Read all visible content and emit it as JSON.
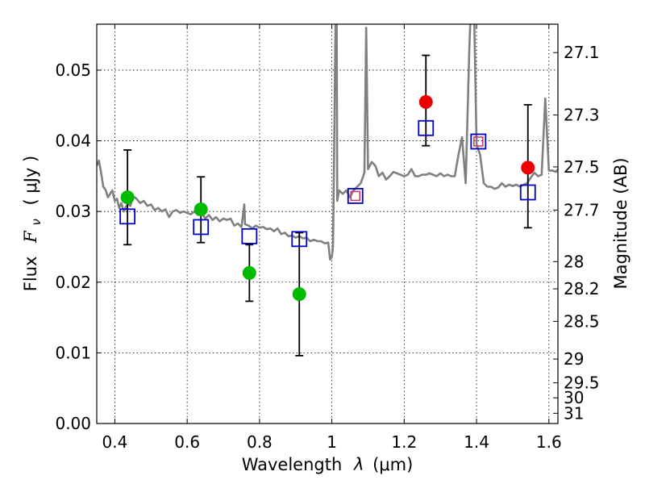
{
  "chart_data": {
    "type": "scatter",
    "xlabel_text": "Wavelength",
    "xlabel_symbol": "λ",
    "xlabel_unit": "(μm)",
    "ylabel_text": "Flux",
    "ylabel_symbol": "F",
    "ylabel_subscript": "ν",
    "ylabel_unit": "( μJy )",
    "y2label": "Magnitude (AB)",
    "xlim": [
      0.35,
      1.625
    ],
    "ylim": [
      0.0,
      0.0565
    ],
    "grid": true,
    "x_ticks": [
      0.4,
      0.6,
      0.8,
      1.0,
      1.2,
      1.4,
      1.6
    ],
    "x_tick_labels": [
      "0.4",
      "0.6",
      "0.8",
      "1",
      "1.2",
      "1.4",
      "1.6"
    ],
    "y_ticks": [
      0.0,
      0.01,
      0.02,
      0.03,
      0.04,
      0.05
    ],
    "y_tick_labels": [
      "0.00",
      "0.01",
      "0.02",
      "0.03",
      "0.04",
      "0.05"
    ],
    "y2_ticks": [
      {
        "label": "27.1",
        "mag": 27.1
      },
      {
        "label": "27.3",
        "mag": 27.3
      },
      {
        "label": "27.5",
        "mag": 27.5
      },
      {
        "label": "27.7",
        "mag": 27.7
      },
      {
        "label": "28",
        "mag": 28.0
      },
      {
        "label": "28.2",
        "mag": 28.2
      },
      {
        "label": "28.5",
        "mag": 28.5
      },
      {
        "label": "29",
        "mag": 29.0
      },
      {
        "label": "29.5",
        "mag": 29.5
      },
      {
        "label": "30",
        "mag": 30.0
      },
      {
        "label": "31",
        "mag": 31.0
      }
    ],
    "colors": {
      "model": "#808080",
      "green": "#00bb00",
      "red": "#ee0000",
      "blue": "#0000cc",
      "pink": "#cc3366",
      "errorbar": "#000000"
    },
    "series": [
      {
        "kind": "model_spectrum",
        "x": [
          0.35,
          0.356,
          0.362,
          0.368,
          0.375,
          0.381,
          0.387,
          0.393,
          0.4,
          0.406,
          0.412,
          0.418,
          0.425,
          0.431,
          0.437,
          0.443,
          0.45,
          0.46,
          0.47,
          0.48,
          0.49,
          0.5,
          0.51,
          0.52,
          0.53,
          0.54,
          0.55,
          0.56,
          0.57,
          0.58,
          0.59,
          0.6,
          0.61,
          0.62,
          0.63,
          0.64,
          0.65,
          0.66,
          0.67,
          0.68,
          0.69,
          0.7,
          0.71,
          0.72,
          0.73,
          0.74,
          0.75,
          0.758,
          0.76,
          0.77,
          0.78,
          0.79,
          0.8,
          0.81,
          0.82,
          0.83,
          0.84,
          0.85,
          0.86,
          0.87,
          0.88,
          0.89,
          0.9,
          0.91,
          0.92,
          0.93,
          0.94,
          0.95,
          0.96,
          0.97,
          0.98,
          0.99,
          0.995,
          1.0,
          1.003,
          1.005,
          1.01,
          1.012,
          1.015,
          1.02,
          1.03,
          1.04,
          1.05,
          1.06,
          1.07,
          1.08,
          1.09,
          1.095,
          1.1,
          1.11,
          1.12,
          1.13,
          1.14,
          1.15,
          1.16,
          1.17,
          1.18,
          1.19,
          1.2,
          1.21,
          1.22,
          1.23,
          1.24,
          1.25,
          1.26,
          1.27,
          1.28,
          1.29,
          1.3,
          1.31,
          1.32,
          1.33,
          1.34,
          1.35,
          1.36,
          1.37,
          1.38,
          1.39,
          1.4,
          1.41,
          1.42,
          1.43,
          1.44,
          1.45,
          1.46,
          1.47,
          1.48,
          1.49,
          1.5,
          1.51,
          1.52,
          1.53,
          1.54,
          1.55,
          1.56,
          1.57,
          1.58,
          1.59,
          1.6,
          1.61,
          1.62,
          1.625
        ],
        "y": [
          0.0365,
          0.0372,
          0.0355,
          0.0335,
          0.033,
          0.032,
          0.0325,
          0.033,
          0.0315,
          0.0318,
          0.0305,
          0.0312,
          0.03,
          0.0307,
          0.031,
          0.0308,
          0.0322,
          0.0318,
          0.0312,
          0.0315,
          0.0308,
          0.031,
          0.0302,
          0.0305,
          0.03,
          0.0303,
          0.0292,
          0.03,
          0.0302,
          0.0298,
          0.03,
          0.0298,
          0.0296,
          0.03,
          0.0295,
          0.0298,
          0.029,
          0.0295,
          0.0288,
          0.0292,
          0.0286,
          0.029,
          0.0288,
          0.029,
          0.028,
          0.0283,
          0.0278,
          0.031,
          0.0282,
          0.028,
          0.0276,
          0.028,
          0.0277,
          0.0278,
          0.0275,
          0.0276,
          0.0272,
          0.0276,
          0.0268,
          0.027,
          0.0265,
          0.0266,
          0.0263,
          0.0265,
          0.0262,
          0.0263,
          0.0258,
          0.026,
          0.0258,
          0.0258,
          0.0255,
          0.0256,
          0.0232,
          0.0236,
          0.025,
          0.033,
          0.056,
          0.08,
          0.0315,
          0.033,
          0.0325,
          0.033,
          0.032,
          0.033,
          0.0335,
          0.034,
          0.0355,
          0.056,
          0.036,
          0.037,
          0.0365,
          0.035,
          0.0355,
          0.0345,
          0.035,
          0.0356,
          0.0354,
          0.0352,
          0.035,
          0.0352,
          0.036,
          0.035,
          0.035,
          0.0352,
          0.0352,
          0.0354,
          0.0352,
          0.035,
          0.0354,
          0.035,
          0.0352,
          0.035,
          0.035,
          0.038,
          0.0405,
          0.034,
          0.053,
          0.067,
          0.0395,
          0.038,
          0.034,
          0.0335,
          0.0335,
          0.0332,
          0.0334,
          0.034,
          0.0335,
          0.0338,
          0.0336,
          0.0338,
          0.0335,
          0.0338,
          0.034,
          0.0348,
          0.0355,
          0.035,
          0.0352,
          0.046,
          0.0358,
          0.0358,
          0.0356,
          0.036
        ]
      },
      {
        "kind": "observed_detections",
        "color_key": "green",
        "x": [
          0.435,
          0.638,
          0.772,
          0.91
        ],
        "y": [
          0.032,
          0.0303,
          0.0213,
          0.0183
        ],
        "err_low": [
          0.0253,
          0.0256,
          0.0173,
          0.0096
        ],
        "err_high": [
          0.0387,
          0.0349,
          0.0253,
          0.027
        ]
      },
      {
        "kind": "observed_detections",
        "color_key": "red",
        "x": [
          1.26,
          1.542
        ],
        "y": [
          0.0455,
          0.0362
        ],
        "err_low": [
          0.0393,
          0.0277
        ],
        "err_high": [
          0.0521,
          0.0451
        ]
      },
      {
        "kind": "model_photometry",
        "color_key": "blue",
        "x": [
          0.435,
          0.638,
          0.772,
          0.91,
          1.065,
          1.26,
          1.405,
          1.542
        ],
        "y": [
          0.0293,
          0.0278,
          0.0265,
          0.0261,
          0.0322,
          0.0418,
          0.0399,
          0.0327
        ],
        "inner_marker": [
          false,
          false,
          false,
          false,
          true,
          false,
          true,
          false
        ]
      }
    ]
  }
}
